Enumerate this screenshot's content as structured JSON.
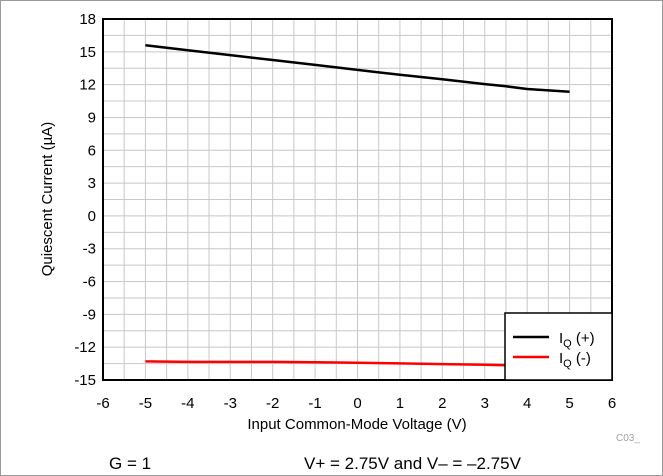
{
  "chart_data": {
    "type": "line",
    "xlabel": "Input Common-Mode Voltage (V)",
    "ylabel": "Quiescent Current (µA)",
    "xlim": [
      -6,
      6
    ],
    "ylim": [
      -15,
      18
    ],
    "x_ticks": [
      -6,
      -5,
      -4,
      -3,
      -2,
      -1,
      0,
      1,
      2,
      3,
      4,
      5,
      6
    ],
    "y_ticks": [
      -15,
      -12,
      -9,
      -6,
      -3,
      0,
      3,
      6,
      9,
      12,
      15,
      18
    ],
    "grid": true,
    "legend_position": "bottom-right",
    "series": [
      {
        "name_main": "I",
        "name_sub": "Q",
        "name_suffix": " (+)",
        "color": "#000000",
        "x": [
          -5,
          -4,
          -3,
          -2,
          -1,
          0,
          1,
          2,
          3,
          3.5,
          4,
          5
        ],
        "y": [
          15.6,
          15.15,
          14.7,
          14.25,
          13.8,
          13.35,
          12.9,
          12.5,
          12.05,
          11.85,
          11.6,
          11.35
        ]
      },
      {
        "name_main": "I",
        "name_sub": "Q",
        "name_suffix": " (-)",
        "color": "#ff0000",
        "x": [
          -5,
          -4,
          -3,
          -2,
          -1,
          0,
          1,
          2,
          3,
          3.5
        ],
        "y": [
          -13.3,
          -13.35,
          -13.35,
          -13.35,
          -13.38,
          -13.42,
          -13.48,
          -13.55,
          -13.6,
          -13.65
        ]
      }
    ]
  },
  "footer": {
    "left": "G = 1",
    "right": "V+ = 2.75V and V– = –2.75V",
    "code": "C03_"
  }
}
